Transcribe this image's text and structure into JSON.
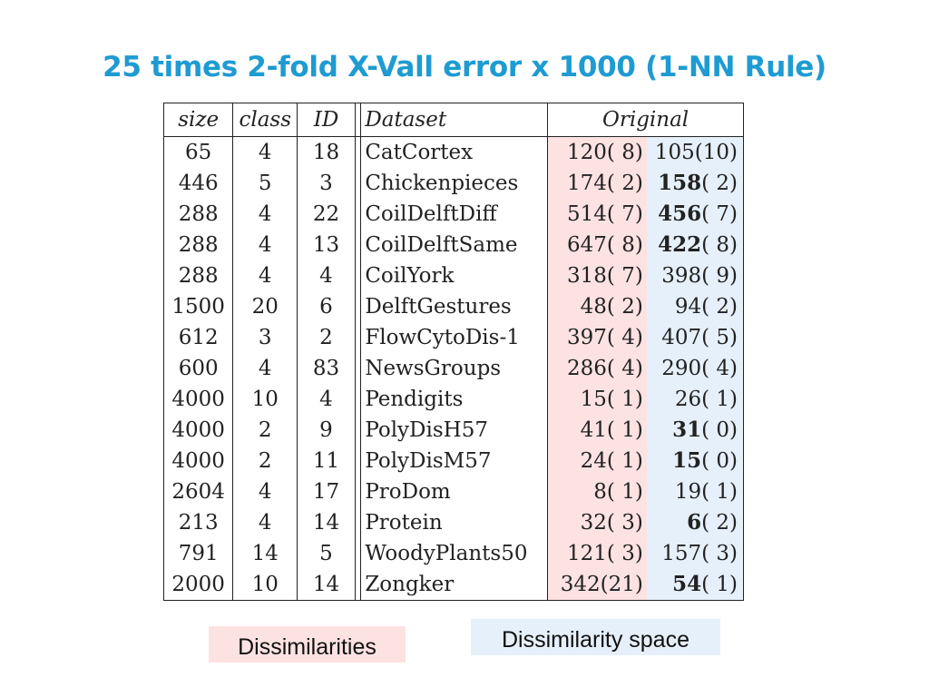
{
  "title": "25 times 2-fold X-Vall error x 1000 (1-NN Rule)",
  "table": {
    "headers": {
      "size": "size",
      "class": "class",
      "id": "ID",
      "dataset": "Dataset",
      "original": "Original"
    },
    "rows": [
      {
        "size": "65",
        "class": "4",
        "id": "18",
        "dataset": "CatCortex",
        "diss": "120( 8)",
        "space_num": "105",
        "space_rest": "(10)",
        "space_bold": false
      },
      {
        "size": "446",
        "class": "5",
        "id": "3",
        "dataset": "Chickenpieces",
        "diss": "174( 2)",
        "space_num": "158",
        "space_rest": "( 2)",
        "space_bold": true
      },
      {
        "size": "288",
        "class": "4",
        "id": "22",
        "dataset": "CoilDelftDiff",
        "diss": "514( 7)",
        "space_num": "456",
        "space_rest": "( 7)",
        "space_bold": true
      },
      {
        "size": "288",
        "class": "4",
        "id": "13",
        "dataset": "CoilDelftSame",
        "diss": "647( 8)",
        "space_num": "422",
        "space_rest": "( 8)",
        "space_bold": true
      },
      {
        "size": "288",
        "class": "4",
        "id": "4",
        "dataset": "CoilYork",
        "diss": "318( 7)",
        "space_num": "398",
        "space_rest": "( 9)",
        "space_bold": false
      },
      {
        "size": "1500",
        "class": "20",
        "id": "6",
        "dataset": "DelftGestures",
        "diss": "48( 2)",
        "space_num": "94",
        "space_rest": "( 2)",
        "space_bold": false
      },
      {
        "size": "612",
        "class": "3",
        "id": "2",
        "dataset": "FlowCytoDis-1",
        "diss": "397( 4)",
        "space_num": "407",
        "space_rest": "( 5)",
        "space_bold": false
      },
      {
        "size": "600",
        "class": "4",
        "id": "83",
        "dataset": "NewsGroups",
        "diss": "286( 4)",
        "space_num": "290",
        "space_rest": "( 4)",
        "space_bold": false
      },
      {
        "size": "4000",
        "class": "10",
        "id": "4",
        "dataset": "Pendigits",
        "diss": "15( 1)",
        "space_num": "26",
        "space_rest": "( 1)",
        "space_bold": false
      },
      {
        "size": "4000",
        "class": "2",
        "id": "9",
        "dataset": "PolyDisH57",
        "diss": "41( 1)",
        "space_num": "31",
        "space_rest": "( 0)",
        "space_bold": true
      },
      {
        "size": "4000",
        "class": "2",
        "id": "11",
        "dataset": "PolyDisM57",
        "diss": "24( 1)",
        "space_num": "15",
        "space_rest": "( 0)",
        "space_bold": true
      },
      {
        "size": "2604",
        "class": "4",
        "id": "17",
        "dataset": "ProDom",
        "diss": "8( 1)",
        "space_num": "19",
        "space_rest": "( 1)",
        "space_bold": false
      },
      {
        "size": "213",
        "class": "4",
        "id": "14",
        "dataset": "Protein",
        "diss": "32( 3)",
        "space_num": "6",
        "space_rest": "( 2)",
        "space_bold": true
      },
      {
        "size": "791",
        "class": "14",
        "id": "5",
        "dataset": "WoodyPlants50",
        "diss": "121( 3)",
        "space_num": "157",
        "space_rest": "( 3)",
        "space_bold": false
      },
      {
        "size": "2000",
        "class": "10",
        "id": "14",
        "dataset": "Zongker",
        "diss": "342(21)",
        "space_num": "54",
        "space_rest": "( 1)",
        "space_bold": true
      }
    ]
  },
  "labels": {
    "dissimilarities": "Dissimilarities",
    "dissimilarity_space": "Dissimilarity space"
  },
  "colors": {
    "title": "#1e9bd2",
    "dissimilarities_bg": "#fde2e2",
    "space_bg": "#e5f0fb"
  }
}
